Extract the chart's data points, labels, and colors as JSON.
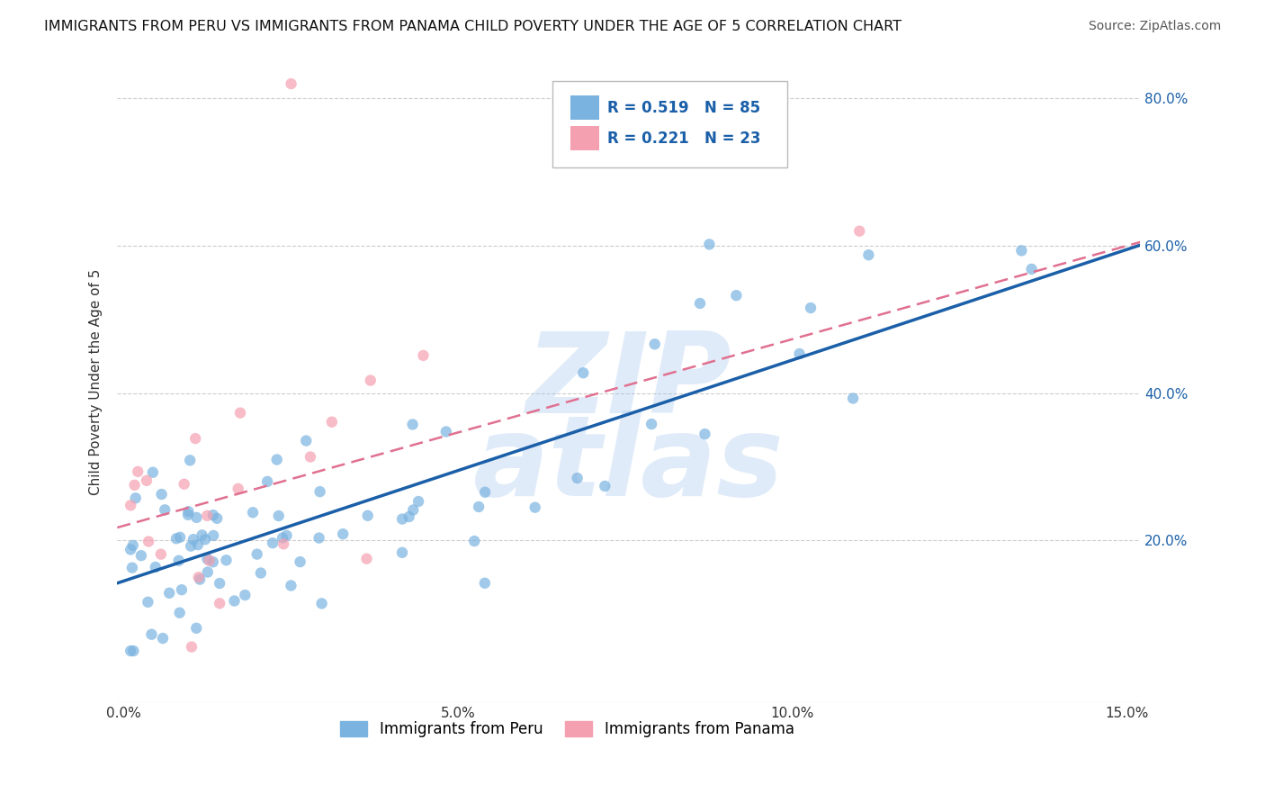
{
  "title": "IMMIGRANTS FROM PERU VS IMMIGRANTS FROM PANAMA CHILD POVERTY UNDER THE AGE OF 5 CORRELATION CHART",
  "source": "Source: ZipAtlas.com",
  "xlabel_peru": "Immigrants from Peru",
  "xlabel_panama": "Immigrants from Panama",
  "ylabel": "Child Poverty Under the Age of 5",
  "xlim": [
    -0.001,
    0.152
  ],
  "ylim": [
    -0.02,
    0.85
  ],
  "xticks": [
    0.0,
    0.05,
    0.1,
    0.15
  ],
  "xtick_labels": [
    "0.0%",
    "5.0%",
    "10.0%",
    "15.0%"
  ],
  "ytick_labels": [
    "20.0%",
    "40.0%",
    "60.0%",
    "80.0%"
  ],
  "yticks": [
    0.2,
    0.4,
    0.6,
    0.8
  ],
  "R_peru": 0.519,
  "N_peru": 85,
  "R_panama": 0.221,
  "N_panama": 23,
  "peru_color": "#7ab3e0",
  "panama_color": "#f4a0b0",
  "trend_peru_color": "#1a5fa8",
  "trend_panama_color": "#e07090",
  "trend_peru_intercept": 0.145,
  "trend_peru_slope": 3.05,
  "trend_panama_intercept": 0.215,
  "trend_panama_slope": 2.55,
  "grid_color": "#cccccc",
  "watermark_color": "#a8c8f0",
  "watermark_alpha": 0.35
}
